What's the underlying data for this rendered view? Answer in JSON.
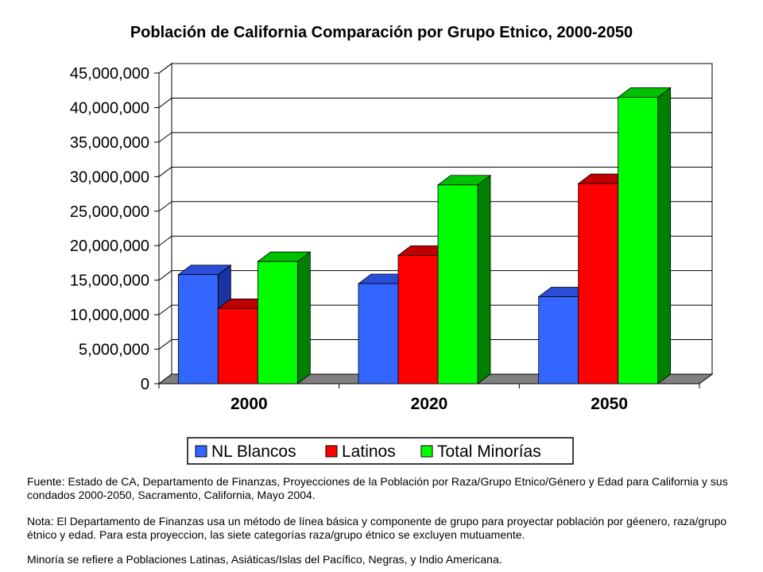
{
  "chart_data": {
    "type": "bar",
    "title": "Población de California Comparación por Grupo Etnico, 2000-2050",
    "categories": [
      "2000",
      "2020",
      "2050"
    ],
    "series": [
      {
        "name": "NL Blancos",
        "color": "#3366ff",
        "side_color": "#1a33a0",
        "top_color": "#2a4cd6",
        "values": [
          15800000,
          14500000,
          12600000
        ]
      },
      {
        "name": "Latinos",
        "color": "#ff0000",
        "side_color": "#8c0000",
        "top_color": "#c00000",
        "values": [
          10900000,
          18600000,
          29000000
        ]
      },
      {
        "name": "Total Minorías",
        "color": "#00ff00",
        "side_color": "#008000",
        "top_color": "#00c000",
        "values": [
          17700000,
          28800000,
          41500000
        ]
      }
    ],
    "ylim": [
      0,
      45000000
    ],
    "yticks": [
      0,
      5000000,
      10000000,
      15000000,
      20000000,
      25000000,
      30000000,
      35000000,
      40000000,
      45000000
    ],
    "ytick_labels": [
      "0",
      "5,000,000",
      "10,000,000",
      "15,000,000",
      "20,000,000",
      "25,000,000",
      "30,000,000",
      "35,000,000",
      "40,000,000",
      "45,000,000"
    ],
    "xlabel": "",
    "ylabel": "",
    "grid": true,
    "legend_position": "bottom-center",
    "three_d": true
  },
  "notes": {
    "source": "Fuente: Estado de CA, Departamento de Finanzas, Proyecciones de la Población por Raza/Grupo Etnico/Género y Edad para California y sus condados 2000-2050, Sacramento, California, Mayo 2004.",
    "method": "Nota: El Departamento de Finanzas usa un método de línea básica y componente de grupo para proyectar población por géenero, raza/grupo étnico y edad. Para esta proyeccion, las siete categorías raza/grupo étnico se excluyen mutuamente.",
    "minority": "Minoría se refiere a Poblaciones Latinas, Asiáticas/Islas del Pacífico, Negras, y  Indio Americana."
  }
}
